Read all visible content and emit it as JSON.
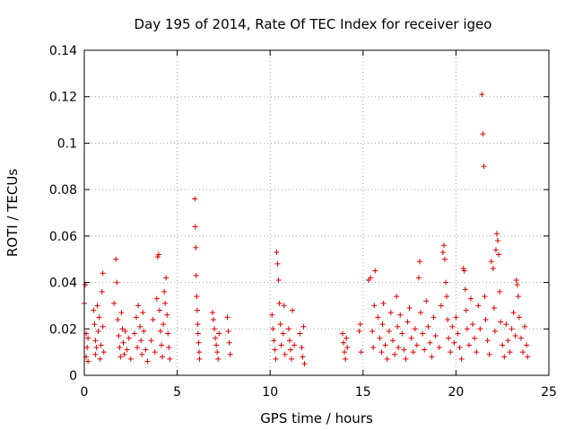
{
  "chart_data": {
    "type": "scatter",
    "title": "Day 195 of 2014, Rate Of TEC Index for receiver igeo",
    "xlabel": "GPS time / hours",
    "ylabel": "ROTI / TECUs",
    "xlim": [
      0,
      25
    ],
    "ylim": [
      0,
      0.14
    ],
    "xticks": [
      0,
      5,
      10,
      15,
      20,
      25
    ],
    "xtick_labels": [
      "0",
      "5",
      "10",
      "15",
      "20",
      "25"
    ],
    "yticks": [
      0,
      0.02,
      0.04,
      0.06,
      0.08,
      0.1,
      0.12,
      0.14
    ],
    "ytick_labels": [
      "0",
      "0.02",
      "0.04",
      "0.06",
      "0.08",
      "0.1",
      "0.12",
      "0.14"
    ],
    "grid": true,
    "marker": "+",
    "color": "#e00000",
    "series": [
      {
        "name": "ROTI",
        "points": [
          [
            0.0,
            0.031
          ],
          [
            0.05,
            0.039
          ],
          [
            0.1,
            0.018
          ],
          [
            0.1,
            0.008
          ],
          [
            0.15,
            0.012
          ],
          [
            0.2,
            0.016
          ],
          [
            0.2,
            0.006
          ],
          [
            0.5,
            0.028
          ],
          [
            0.55,
            0.022
          ],
          [
            0.6,
            0.015
          ],
          [
            0.6,
            0.009
          ],
          [
            0.65,
            0.012
          ],
          [
            0.7,
            0.03
          ],
          [
            0.75,
            0.019
          ],
          [
            0.8,
            0.025
          ],
          [
            0.85,
            0.007
          ],
          [
            0.9,
            0.013
          ],
          [
            0.95,
            0.036
          ],
          [
            1.0,
            0.044
          ],
          [
            1.0,
            0.021
          ],
          [
            1.05,
            0.01
          ],
          [
            1.6,
            0.031
          ],
          [
            1.7,
            0.05
          ],
          [
            1.75,
            0.04
          ],
          [
            1.8,
            0.024
          ],
          [
            1.85,
            0.017
          ],
          [
            1.9,
            0.012
          ],
          [
            1.95,
            0.008
          ],
          [
            2.0,
            0.027
          ],
          [
            2.05,
            0.02
          ],
          [
            2.1,
            0.014
          ],
          [
            2.15,
            0.009
          ],
          [
            2.2,
            0.019
          ],
          [
            2.3,
            0.011
          ],
          [
            2.4,
            0.016
          ],
          [
            2.5,
            0.007
          ],
          [
            2.7,
            0.018
          ],
          [
            2.8,
            0.025
          ],
          [
            2.85,
            0.012
          ],
          [
            2.9,
            0.03
          ],
          [
            3.0,
            0.021
          ],
          [
            3.05,
            0.015
          ],
          [
            3.1,
            0.009
          ],
          [
            3.15,
            0.027
          ],
          [
            3.2,
            0.019
          ],
          [
            3.3,
            0.011
          ],
          [
            3.4,
            0.006
          ],
          [
            3.6,
            0.015
          ],
          [
            3.7,
            0.024
          ],
          [
            3.8,
            0.01
          ],
          [
            3.9,
            0.033
          ],
          [
            3.95,
            0.051
          ],
          [
            4.0,
            0.052
          ],
          [
            4.05,
            0.028
          ],
          [
            4.1,
            0.019
          ],
          [
            4.15,
            0.013
          ],
          [
            4.2,
            0.008
          ],
          [
            4.25,
            0.022
          ],
          [
            4.3,
            0.036
          ],
          [
            4.35,
            0.031
          ],
          [
            4.4,
            0.042
          ],
          [
            4.45,
            0.026
          ],
          [
            4.5,
            0.018
          ],
          [
            4.55,
            0.012
          ],
          [
            4.6,
            0.007
          ],
          [
            5.95,
            0.076
          ],
          [
            5.97,
            0.064
          ],
          [
            6.0,
            0.055
          ],
          [
            6.02,
            0.043
          ],
          [
            6.05,
            0.034
          ],
          [
            6.08,
            0.028
          ],
          [
            6.1,
            0.022
          ],
          [
            6.12,
            0.018
          ],
          [
            6.15,
            0.014
          ],
          [
            6.18,
            0.01
          ],
          [
            6.2,
            0.007
          ],
          [
            6.9,
            0.027
          ],
          [
            6.95,
            0.024
          ],
          [
            7.0,
            0.02
          ],
          [
            7.05,
            0.016
          ],
          [
            7.1,
            0.013
          ],
          [
            7.15,
            0.01
          ],
          [
            7.2,
            0.007
          ],
          [
            7.25,
            0.018
          ],
          [
            7.7,
            0.025
          ],
          [
            7.75,
            0.019
          ],
          [
            7.8,
            0.014
          ],
          [
            7.85,
            0.009
          ],
          [
            10.1,
            0.026
          ],
          [
            10.15,
            0.02
          ],
          [
            10.2,
            0.015
          ],
          [
            10.25,
            0.011
          ],
          [
            10.3,
            0.007
          ],
          [
            10.35,
            0.053
          ],
          [
            10.4,
            0.048
          ],
          [
            10.45,
            0.041
          ],
          [
            10.5,
            0.031
          ],
          [
            10.55,
            0.022
          ],
          [
            10.6,
            0.013
          ],
          [
            10.7,
            0.018
          ],
          [
            10.75,
            0.03
          ],
          [
            10.8,
            0.009
          ],
          [
            11.0,
            0.02
          ],
          [
            11.05,
            0.015
          ],
          [
            11.1,
            0.011
          ],
          [
            11.15,
            0.007
          ],
          [
            11.2,
            0.028
          ],
          [
            11.3,
            0.013
          ],
          [
            11.6,
            0.018
          ],
          [
            11.7,
            0.012
          ],
          [
            11.75,
            0.008
          ],
          [
            11.8,
            0.021
          ],
          [
            11.85,
            0.005
          ],
          [
            13.9,
            0.018
          ],
          [
            13.95,
            0.014
          ],
          [
            14.0,
            0.01
          ],
          [
            14.05,
            0.007
          ],
          [
            14.1,
            0.016
          ],
          [
            14.15,
            0.012
          ],
          [
            14.8,
            0.019
          ],
          [
            14.85,
            0.022
          ],
          [
            14.9,
            0.01
          ],
          [
            15.3,
            0.041
          ],
          [
            15.4,
            0.042
          ],
          [
            15.5,
            0.019
          ],
          [
            15.55,
            0.012
          ],
          [
            15.6,
            0.03
          ],
          [
            15.65,
            0.045
          ],
          [
            15.8,
            0.025
          ],
          [
            15.9,
            0.016
          ],
          [
            16.0,
            0.01
          ],
          [
            16.05,
            0.022
          ],
          [
            16.1,
            0.031
          ],
          [
            16.2,
            0.013
          ],
          [
            16.3,
            0.007
          ],
          [
            16.4,
            0.019
          ],
          [
            16.5,
            0.027
          ],
          [
            16.6,
            0.015
          ],
          [
            16.7,
            0.009
          ],
          [
            16.8,
            0.034
          ],
          [
            16.85,
            0.021
          ],
          [
            16.9,
            0.012
          ],
          [
            17.0,
            0.026
          ],
          [
            17.1,
            0.018
          ],
          [
            17.2,
            0.011
          ],
          [
            17.3,
            0.007
          ],
          [
            17.4,
            0.023
          ],
          [
            17.5,
            0.029
          ],
          [
            17.6,
            0.016
          ],
          [
            17.7,
            0.01
          ],
          [
            17.8,
            0.02
          ],
          [
            17.9,
            0.013
          ],
          [
            18.0,
            0.042
          ],
          [
            18.05,
            0.049
          ],
          [
            18.1,
            0.027
          ],
          [
            18.2,
            0.018
          ],
          [
            18.3,
            0.011
          ],
          [
            18.4,
            0.032
          ],
          [
            18.5,
            0.021
          ],
          [
            18.6,
            0.014
          ],
          [
            18.7,
            0.008
          ],
          [
            18.8,
            0.025
          ],
          [
            18.9,
            0.017
          ],
          [
            19.1,
            0.012
          ],
          [
            19.2,
            0.03
          ],
          [
            19.3,
            0.053
          ],
          [
            19.35,
            0.056
          ],
          [
            19.4,
            0.05
          ],
          [
            19.45,
            0.04
          ],
          [
            19.5,
            0.034
          ],
          [
            19.55,
            0.024
          ],
          [
            19.6,
            0.016
          ],
          [
            19.7,
            0.01
          ],
          [
            19.8,
            0.021
          ],
          [
            19.9,
            0.014
          ],
          [
            20.0,
            0.025
          ],
          [
            20.1,
            0.018
          ],
          [
            20.2,
            0.012
          ],
          [
            20.3,
            0.007
          ],
          [
            20.4,
            0.046
          ],
          [
            20.45,
            0.045
          ],
          [
            20.5,
            0.037
          ],
          [
            20.55,
            0.028
          ],
          [
            20.6,
            0.02
          ],
          [
            20.7,
            0.013
          ],
          [
            20.8,
            0.033
          ],
          [
            20.9,
            0.022
          ],
          [
            21.0,
            0.016
          ],
          [
            21.1,
            0.01
          ],
          [
            21.2,
            0.03
          ],
          [
            21.3,
            0.02
          ],
          [
            21.4,
            0.121
          ],
          [
            21.45,
            0.104
          ],
          [
            21.5,
            0.09
          ],
          [
            21.55,
            0.034
          ],
          [
            21.6,
            0.024
          ],
          [
            21.7,
            0.015
          ],
          [
            21.8,
            0.009
          ],
          [
            21.9,
            0.049
          ],
          [
            22.0,
            0.046
          ],
          [
            22.05,
            0.029
          ],
          [
            22.1,
            0.019
          ],
          [
            22.15,
            0.054
          ],
          [
            22.2,
            0.061
          ],
          [
            22.25,
            0.058
          ],
          [
            22.3,
            0.052
          ],
          [
            22.35,
            0.036
          ],
          [
            22.4,
            0.023
          ],
          [
            22.5,
            0.013
          ],
          [
            22.6,
            0.008
          ],
          [
            22.7,
            0.022
          ],
          [
            22.8,
            0.015
          ],
          [
            22.9,
            0.01
          ],
          [
            23.0,
            0.02
          ],
          [
            23.1,
            0.027
          ],
          [
            23.2,
            0.017
          ],
          [
            23.25,
            0.041
          ],
          [
            23.3,
            0.039
          ],
          [
            23.35,
            0.034
          ],
          [
            23.4,
            0.025
          ],
          [
            23.5,
            0.016
          ],
          [
            23.6,
            0.01
          ],
          [
            23.7,
            0.021
          ],
          [
            23.8,
            0.013
          ],
          [
            23.85,
            0.008
          ]
        ]
      }
    ]
  }
}
